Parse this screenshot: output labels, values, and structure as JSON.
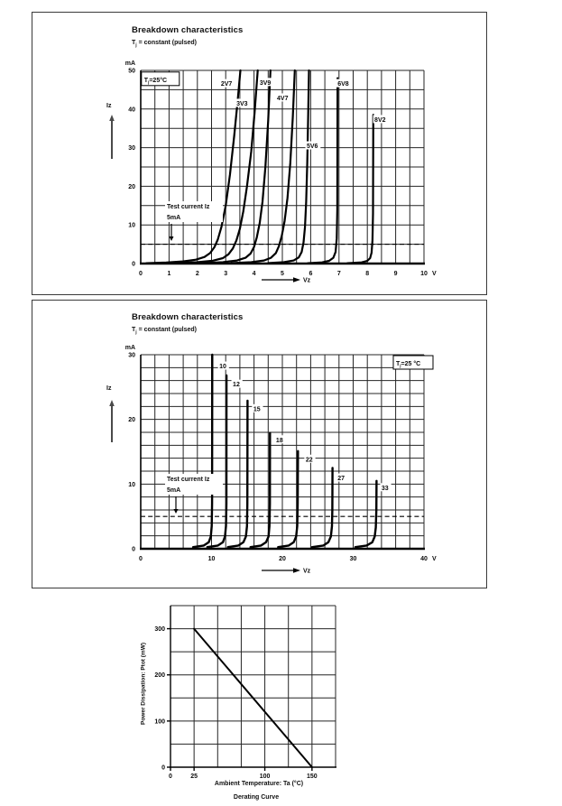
{
  "page": {
    "background": "#ffffff"
  },
  "section1": {
    "title": "Breakdown characteristics",
    "subtitle_t": "T",
    "subtitle_j": "j",
    "subtitle_rest": " = constant (pulsed)"
  },
  "section2": {
    "title": "Breakdown characteristics",
    "subtitle_t": "T",
    "subtitle_j": "j",
    "subtitle_rest": " = constant (pulsed)"
  },
  "chart_data": [
    {
      "type": "line",
      "title": "Breakdown characteristics",
      "subtitle": "Tj = constant (pulsed)",
      "corner": {
        "t": "T",
        "sub": "j",
        "rest": "=25°C"
      },
      "xlabel": "Vz",
      "ylabel": "Iz",
      "x_unit": "V",
      "y_unit": "mA",
      "xlim": [
        0,
        10
      ],
      "ylim": [
        0,
        50
      ],
      "grid_step": [
        0.5,
        5
      ],
      "x_ticks": [
        0,
        1,
        2,
        3,
        4,
        5,
        6,
        7,
        8,
        9,
        10
      ],
      "x_tick_labels": [
        "0",
        "1",
        "2",
        "3",
        "4",
        "5",
        "6",
        "7",
        "8",
        "9",
        "10"
      ],
      "y_ticks": [
        0,
        10,
        20,
        30,
        40,
        50
      ],
      "y_tick_labels": [
        "0",
        "10",
        "20",
        "30",
        "40",
        "50"
      ],
      "test_current": 5,
      "test_label": [
        "Test current Iz",
        "5mA"
      ],
      "series": [
        {
          "name": "2V7",
          "label_at": [
            2.83,
            46.0
          ],
          "points": [
            [
              0.2,
              0.1
            ],
            [
              0.9,
              0.25
            ],
            [
              1.5,
              0.55
            ],
            [
              1.95,
              1.0
            ],
            [
              2.25,
              1.7
            ],
            [
              2.45,
              2.7
            ],
            [
              2.6,
              4.2
            ],
            [
              2.72,
              6.2
            ],
            [
              2.85,
              9.5
            ],
            [
              3.0,
              15
            ],
            [
              3.15,
              23
            ],
            [
              3.3,
              33
            ],
            [
              3.42,
              42
            ],
            [
              3.52,
              50
            ]
          ]
        },
        {
          "name": "3V3",
          "label_at": [
            3.38,
            40.9
          ],
          "points": [
            [
              1.2,
              0.12
            ],
            [
              2.0,
              0.35
            ],
            [
              2.55,
              0.75
            ],
            [
              2.9,
              1.4
            ],
            [
              3.1,
              2.4
            ],
            [
              3.25,
              3.9
            ],
            [
              3.38,
              6
            ],
            [
              3.5,
              9
            ],
            [
              3.62,
              13.5
            ],
            [
              3.75,
              20
            ],
            [
              3.9,
              29
            ],
            [
              4.02,
              39
            ],
            [
              4.13,
              50
            ]
          ]
        },
        {
          "name": "3V9",
          "label_at": [
            4.2,
            46.3
          ],
          "points": [
            [
              2.2,
              0.12
            ],
            [
              2.9,
              0.35
            ],
            [
              3.4,
              0.8
            ],
            [
              3.7,
              1.5
            ],
            [
              3.88,
              2.6
            ],
            [
              4.0,
              4.3
            ],
            [
              4.1,
              6.8
            ],
            [
              4.2,
              10.5
            ],
            [
              4.3,
              16
            ],
            [
              4.4,
              25
            ],
            [
              4.5,
              37
            ],
            [
              4.58,
              50
            ]
          ]
        },
        {
          "name": "4V7",
          "label_at": [
            4.81,
            42.3
          ],
          "points": [
            [
              3.2,
              0.12
            ],
            [
              3.9,
              0.35
            ],
            [
              4.35,
              0.8
            ],
            [
              4.6,
              1.5
            ],
            [
              4.77,
              2.7
            ],
            [
              4.88,
              4.5
            ],
            [
              4.98,
              7.2
            ],
            [
              5.08,
              11
            ],
            [
              5.18,
              17
            ],
            [
              5.28,
              26
            ],
            [
              5.37,
              38
            ],
            [
              5.44,
              50
            ]
          ]
        },
        {
          "name": "5V6",
          "label_at": [
            5.86,
            29.9
          ],
          "points": [
            [
              4.5,
              0.12
            ],
            [
              5.05,
              0.35
            ],
            [
              5.4,
              0.8
            ],
            [
              5.58,
              1.6
            ],
            [
              5.68,
              3
            ],
            [
              5.75,
              5.5
            ],
            [
              5.8,
              9.5
            ],
            [
              5.84,
              16
            ],
            [
              5.88,
              26
            ],
            [
              5.91,
              38
            ],
            [
              5.94,
              50
            ]
          ]
        },
        {
          "name": "6V8",
          "label_at": [
            6.95,
            46.0
          ],
          "points": [
            [
              5.9,
              0.1
            ],
            [
              6.4,
              0.3
            ],
            [
              6.65,
              0.7
            ],
            [
              6.8,
              1.5
            ],
            [
              6.88,
              3
            ],
            [
              6.92,
              6.5
            ],
            [
              6.94,
              14
            ],
            [
              6.95,
              48
            ]
          ]
        },
        {
          "name": "8V2",
          "label_at": [
            8.25,
            36.7
          ],
          "points": [
            [
              7.3,
              0.1
            ],
            [
              7.8,
              0.3
            ],
            [
              8.0,
              0.7
            ],
            [
              8.1,
              1.4
            ],
            [
              8.15,
              2.8
            ],
            [
              8.18,
              6
            ],
            [
              8.2,
              13
            ],
            [
              8.21,
              38.5
            ]
          ]
        }
      ]
    },
    {
      "type": "line",
      "title": "Breakdown characteristics",
      "subtitle": "Tj = constant (pulsed)",
      "corner": {
        "t": "T",
        "sub": "j",
        "rest": "=25 °C"
      },
      "xlabel": "Vz",
      "ylabel": "Iz",
      "x_unit": "V",
      "y_unit": "mA",
      "xlim": [
        0,
        40
      ],
      "ylim": [
        0,
        30
      ],
      "grid_step": [
        2,
        2
      ],
      "x_ticks": [
        0,
        10,
        20,
        30,
        40
      ],
      "x_tick_labels": [
        "0",
        "10",
        "20",
        "30",
        "40"
      ],
      "y_ticks": [
        0,
        10,
        20,
        30
      ],
      "y_tick_labels": [
        "0",
        "10",
        "20",
        "30"
      ],
      "test_current": 5,
      "test_label": [
        "Test current Iz",
        "5mA"
      ],
      "series": [
        {
          "name": "10",
          "label_at": [
            11.1,
            27.9
          ],
          "points": [
            [
              7.4,
              0.25
            ],
            [
              8.9,
              0.5
            ],
            [
              9.6,
              1.0
            ],
            [
              9.9,
              1.9
            ],
            [
              10.02,
              3.5
            ],
            [
              10.08,
              7
            ],
            [
              10.1,
              30
            ]
          ]
        },
        {
          "name": "12",
          "label_at": [
            13.0,
            25.1
          ],
          "points": [
            [
              9.4,
              0.25
            ],
            [
              10.9,
              0.5
            ],
            [
              11.6,
              1.0
            ],
            [
              11.9,
              1.9
            ],
            [
              12.04,
              3.5
            ],
            [
              12.1,
              7
            ],
            [
              12.12,
              26.8
            ]
          ]
        },
        {
          "name": "15",
          "label_at": [
            15.9,
            21.3
          ],
          "points": [
            [
              12.3,
              0.25
            ],
            [
              13.8,
              0.5
            ],
            [
              14.5,
              1.0
            ],
            [
              14.85,
              1.9
            ],
            [
              15.0,
              3.5
            ],
            [
              15.06,
              7
            ],
            [
              15.08,
              22.9
            ]
          ]
        },
        {
          "name": "18",
          "label_at": [
            19.1,
            16.5
          ],
          "points": [
            [
              15.5,
              0.25
            ],
            [
              17.0,
              0.5
            ],
            [
              17.7,
              1.0
            ],
            [
              18.05,
              1.9
            ],
            [
              18.18,
              3.5
            ],
            [
              18.24,
              7
            ],
            [
              18.26,
              17.9
            ]
          ]
        },
        {
          "name": "22",
          "label_at": [
            23.3,
            13.5
          ],
          "points": [
            [
              19.4,
              0.25
            ],
            [
              20.9,
              0.5
            ],
            [
              21.6,
              1.0
            ],
            [
              21.95,
              1.9
            ],
            [
              22.1,
              3.5
            ],
            [
              22.17,
              7
            ],
            [
              22.2,
              15.1
            ]
          ]
        },
        {
          "name": "27",
          "label_at": [
            27.8,
            10.6
          ],
          "points": [
            [
              24.2,
              0.25
            ],
            [
              25.8,
              0.5
            ],
            [
              26.5,
              1.0
            ],
            [
              26.85,
              1.9
            ],
            [
              27.0,
              3.5
            ],
            [
              27.06,
              6
            ],
            [
              27.08,
              12.5
            ]
          ]
        },
        {
          "name": "33",
          "label_at": [
            34.0,
            9.1
          ],
          "points": [
            [
              30.3,
              0.25
            ],
            [
              31.9,
              0.5
            ],
            [
              32.7,
              1.0
            ],
            [
              33.05,
              1.9
            ],
            [
              33.2,
              3.3
            ],
            [
              33.28,
              6
            ],
            [
              33.3,
              10.5
            ]
          ]
        }
      ]
    },
    {
      "type": "line",
      "title": "Derating Curve",
      "caption": "Derating Curve",
      "xlabel": "Ambient Temperature: Ta (°C)",
      "ylabel": "Power Dissipation: Ptot (mW)",
      "xlim": [
        0,
        175
      ],
      "ylim": [
        0,
        350
      ],
      "grid_step": [
        25,
        50
      ],
      "x_ticks": [
        0,
        25,
        100,
        150
      ],
      "x_tick_labels": [
        "0",
        "25",
        "100",
        "150"
      ],
      "y_ticks": [
        0,
        100,
        200,
        300
      ],
      "y_tick_labels": [
        "0",
        "100",
        "200",
        "300"
      ],
      "series": [
        {
          "name": "derating",
          "points": [
            [
              25,
              300
            ],
            [
              150,
              0
            ]
          ]
        }
      ]
    }
  ]
}
